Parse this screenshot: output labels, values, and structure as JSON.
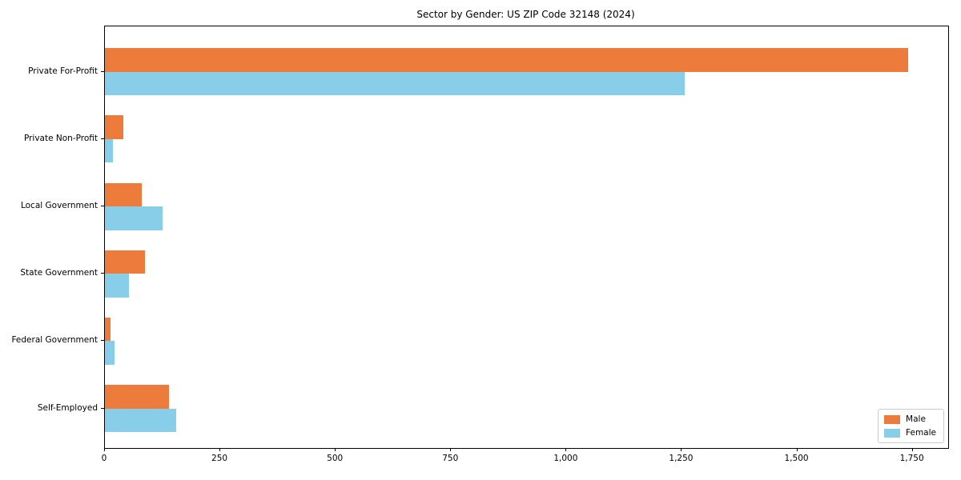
{
  "chart_data": {
    "type": "bar",
    "orientation": "horizontal",
    "title": "Sector by Gender: US ZIP Code 32148 (2024)",
    "categories": [
      "Private For-Profit",
      "Private Non-Profit",
      "Local Government",
      "State Government",
      "Federal Government",
      "Self-Employed"
    ],
    "series": [
      {
        "name": "Male",
        "color": "#ec7b3c",
        "values": [
          1740,
          40,
          79,
          86,
          13,
          139
        ]
      },
      {
        "name": "Female",
        "color": "#89cee8",
        "values": [
          1256,
          18,
          125,
          52,
          20,
          154
        ]
      }
    ],
    "xlabel": "",
    "ylabel": "",
    "xlim": [
      0,
      1827
    ],
    "xticks": [
      {
        "value": 0,
        "label": "0"
      },
      {
        "value": 250,
        "label": "250"
      },
      {
        "value": 500,
        "label": "500"
      },
      {
        "value": 750,
        "label": "750"
      },
      {
        "value": 1000,
        "label": "1,000"
      },
      {
        "value": 1250,
        "label": "1,250"
      },
      {
        "value": 1500,
        "label": "1,500"
      },
      {
        "value": 1750,
        "label": "1,750"
      }
    ],
    "grid": false,
    "legend_position": "lower right",
    "frame_color": "#000000",
    "background_color": "#ffffff"
  }
}
